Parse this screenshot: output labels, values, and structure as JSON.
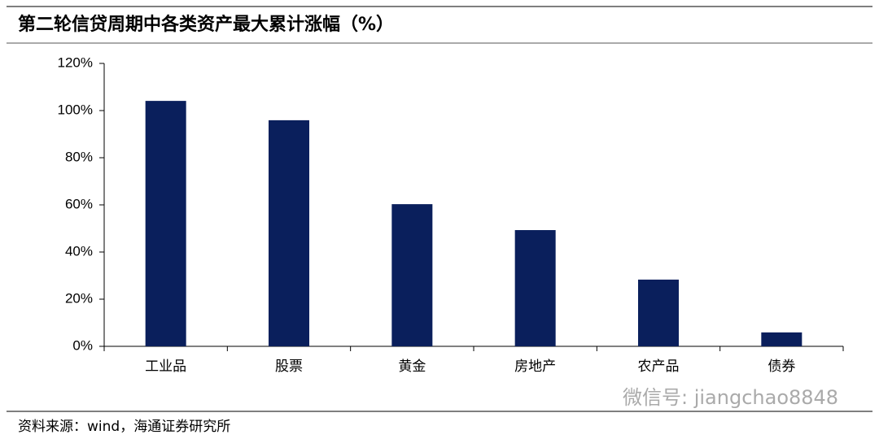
{
  "chart_data": {
    "type": "bar",
    "title": "第二轮信贷周期中各类资产最大累计涨幅（%）",
    "categories": [
      "工业品",
      "股票",
      "黄金",
      "房地产",
      "农产品",
      "债券"
    ],
    "values": [
      104.1,
      95.9,
      60.3,
      49.3,
      28.3,
      5.9
    ],
    "color": "#0a1f5c",
    "ylim": [
      0,
      120
    ],
    "yticks": [
      {
        "value": 0,
        "label": "0%"
      },
      {
        "value": 20,
        "label": "20%"
      },
      {
        "value": 40,
        "label": "40%"
      },
      {
        "value": 60,
        "label": "60%"
      },
      {
        "value": 80,
        "label": "80%"
      },
      {
        "value": 100,
        "label": "100%"
      },
      {
        "value": 120,
        "label": "120%"
      }
    ],
    "source": "资料来源：wind，海通证券研究所",
    "watermark": "微信号: jiangchao8848"
  }
}
